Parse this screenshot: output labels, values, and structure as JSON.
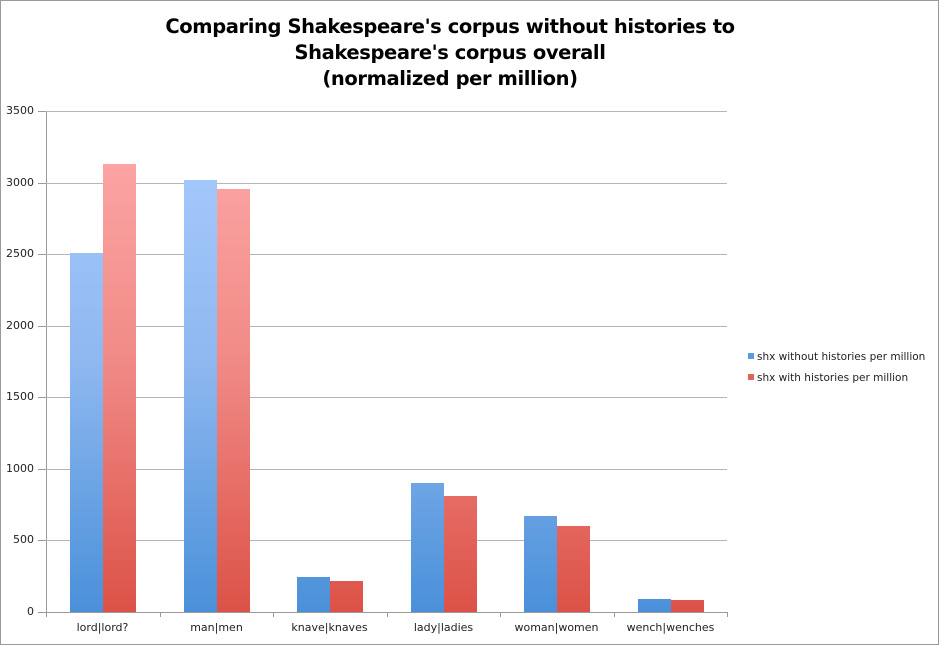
{
  "chart_data": {
    "type": "bar",
    "title": "Comparing Shakespeare's corpus without histories to Shakespeare's corpus overall (normalized per million)",
    "title_lines": [
      "Comparing Shakespeare's corpus without histories to",
      "Shakespeare's corpus overall",
      "(normalized per million)"
    ],
    "xlabel": "",
    "ylabel": "",
    "ylim": [
      0,
      3500
    ],
    "yticks": [
      0,
      500,
      1000,
      1500,
      2000,
      2500,
      3000,
      3500
    ],
    "grid": true,
    "legend_position": "right",
    "categories": [
      "lord|lord?",
      "man|men",
      "knave|knaves",
      "lady|ladies",
      "woman|women",
      "wench|wenches"
    ],
    "series": [
      {
        "name": "shx without histories per million",
        "color": "#4a90d9",
        "values": [
          2505,
          3020,
          245,
          903,
          672,
          90
        ]
      },
      {
        "name": "shx with histories per million",
        "color": "#dc5247",
        "values": [
          3130,
          2955,
          217,
          812,
          602,
          84
        ]
      }
    ]
  }
}
